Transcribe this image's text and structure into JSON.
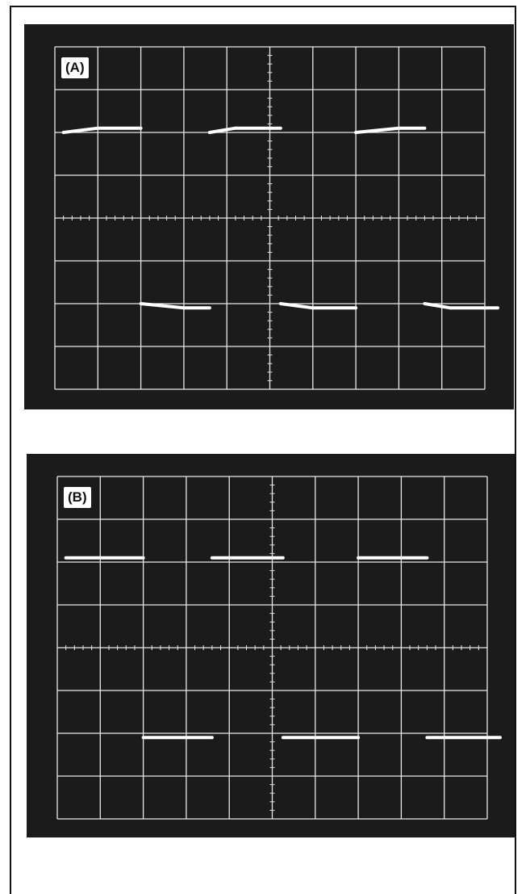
{
  "chart_data": [
    {
      "type": "line",
      "panel_label": "(A)",
      "grid": true,
      "xlim": [
        0,
        10
      ],
      "ylim": [
        -4,
        4
      ],
      "series": [
        {
          "x": [
            0.2,
            1.0,
            2.0,
            2.0,
            3.0,
            3.6,
            3.6,
            4.2,
            5.25,
            5.25,
            6.0,
            7.0,
            7.0,
            8.0,
            8.6,
            8.6,
            9.2,
            10.3
          ],
          "values": [
            2.0,
            2.1,
            2.1,
            -2.0,
            -2.1,
            -2.1,
            2.0,
            2.1,
            2.1,
            -2.0,
            -2.1,
            -2.1,
            2.0,
            2.1,
            2.1,
            -2.0,
            -2.1,
            -2.1
          ]
        }
      ]
    },
    {
      "type": "line",
      "panel_label": "(B)",
      "grid": true,
      "xlim": [
        0,
        10
      ],
      "ylim": [
        -4,
        4
      ],
      "series": [
        {
          "x": [
            0.2,
            2.0,
            2.0,
            3.6,
            3.6,
            5.25,
            5.25,
            7.0,
            7.0,
            8.6,
            8.6,
            10.3
          ],
          "values": [
            2.1,
            2.1,
            -2.1,
            -2.1,
            2.1,
            2.1,
            -2.1,
            -2.1,
            2.1,
            2.1,
            -2.1,
            -2.1
          ]
        }
      ]
    }
  ]
}
